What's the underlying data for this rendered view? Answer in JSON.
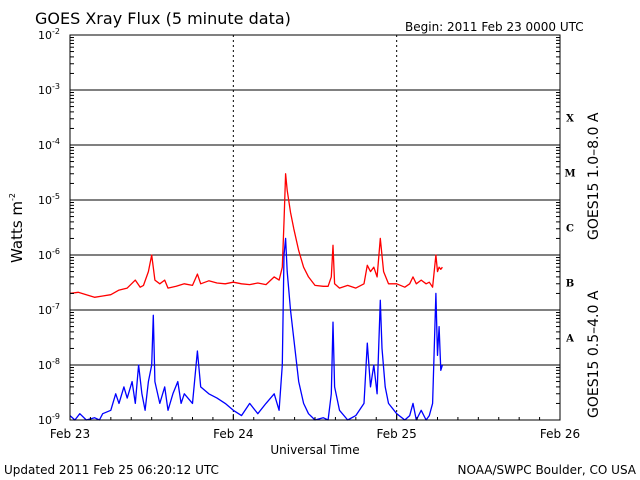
{
  "header": {
    "title": "GOES Xray Flux (5 minute data)",
    "begin": "Begin:  2011 Feb 23 0000 UTC"
  },
  "footer": {
    "updated": "Updated 2011 Feb 25 06:20:12 UTC",
    "source": "NOAA/SWPC Boulder, CO USA"
  },
  "colors": {
    "long_channel": "#ff0000",
    "short_channel": "#0000ff",
    "axes": "#000000"
  },
  "chart_data": {
    "type": "line",
    "title": "GOES Xray Flux (5 minute data)",
    "xlabel": "Universal Time",
    "ylabel_base": "Watts m",
    "ylabel_exp": "-2",
    "yscale": "log",
    "ylim": [
      1e-09,
      0.01
    ],
    "x_unit": "days since 2011 Feb 23 0000 UTC",
    "xlim": [
      0,
      3
    ],
    "x_ticks": [
      {
        "x": 0,
        "label": "Feb 23"
      },
      {
        "x": 1,
        "label": "Feb 24"
      },
      {
        "x": 2,
        "label": "Feb 25"
      },
      {
        "x": 3,
        "label": "Feb 26"
      }
    ],
    "y_ticks": [
      {
        "exp": -9,
        "base": "10",
        "sup": "-9"
      },
      {
        "exp": -8,
        "base": "10",
        "sup": "-8"
      },
      {
        "exp": -7,
        "base": "10",
        "sup": "-7"
      },
      {
        "exp": -6,
        "base": "10",
        "sup": "-6"
      },
      {
        "exp": -5,
        "base": "10",
        "sup": "-5"
      },
      {
        "exp": -4,
        "base": "10",
        "sup": "-4"
      },
      {
        "exp": -3,
        "base": "10",
        "sup": "-3"
      },
      {
        "exp": -2,
        "base": "10",
        "sup": "-2"
      }
    ],
    "grid": "horizontal gridlines at each decade, dotted vertical lines at each day",
    "flare_classes": [
      {
        "label": "A",
        "exp": -8
      },
      {
        "label": "B",
        "exp": -7
      },
      {
        "label": "C",
        "exp": -6
      },
      {
        "label": "M",
        "exp": -5
      },
      {
        "label": "X",
        "exp": -4
      }
    ],
    "series": [
      {
        "name": "GOES15 1.0–8.0 A",
        "color": "#ff0000",
        "points": [
          [
            0.0,
            2e-07
          ],
          [
            0.05,
            2.1e-07
          ],
          [
            0.1,
            1.9e-07
          ],
          [
            0.15,
            1.7e-07
          ],
          [
            0.2,
            1.8e-07
          ],
          [
            0.25,
            1.9e-07
          ],
          [
            0.3,
            2.3e-07
          ],
          [
            0.35,
            2.5e-07
          ],
          [
            0.4,
            3.5e-07
          ],
          [
            0.43,
            2.6e-07
          ],
          [
            0.45,
            2.8e-07
          ],
          [
            0.48,
            5e-07
          ],
          [
            0.5,
            1e-06
          ],
          [
            0.52,
            3.5e-07
          ],
          [
            0.55,
            3e-07
          ],
          [
            0.58,
            3.5e-07
          ],
          [
            0.6,
            2.5e-07
          ],
          [
            0.65,
            2.7e-07
          ],
          [
            0.7,
            3e-07
          ],
          [
            0.75,
            2.8e-07
          ],
          [
            0.78,
            4.5e-07
          ],
          [
            0.8,
            3e-07
          ],
          [
            0.85,
            3.4e-07
          ],
          [
            0.9,
            3.1e-07
          ],
          [
            0.95,
            3e-07
          ],
          [
            1.0,
            3.2e-07
          ],
          [
            1.05,
            3e-07
          ],
          [
            1.1,
            2.9e-07
          ],
          [
            1.15,
            3.1e-07
          ],
          [
            1.2,
            2.9e-07
          ],
          [
            1.25,
            4e-07
          ],
          [
            1.28,
            3.5e-07
          ],
          [
            1.3,
            6e-07
          ],
          [
            1.31,
            4e-06
          ],
          [
            1.32,
            3e-05
          ],
          [
            1.33,
            1.5e-05
          ],
          [
            1.35,
            6e-06
          ],
          [
            1.37,
            3e-06
          ],
          [
            1.4,
            1.2e-06
          ],
          [
            1.43,
            6e-07
          ],
          [
            1.46,
            4e-07
          ],
          [
            1.5,
            2.8e-07
          ],
          [
            1.55,
            2.7e-07
          ],
          [
            1.58,
            2.7e-07
          ],
          [
            1.6,
            4e-07
          ],
          [
            1.61,
            1.5e-06
          ],
          [
            1.62,
            3e-07
          ],
          [
            1.65,
            2.5e-07
          ],
          [
            1.7,
            2.8e-07
          ],
          [
            1.75,
            2.5e-07
          ],
          [
            1.8,
            3e-07
          ],
          [
            1.82,
            6.5e-07
          ],
          [
            1.84,
            5e-07
          ],
          [
            1.86,
            6e-07
          ],
          [
            1.88,
            4e-07
          ],
          [
            1.9,
            2e-06
          ],
          [
            1.92,
            5e-07
          ],
          [
            1.95,
            3e-07
          ],
          [
            2.0,
            3e-07
          ],
          [
            2.05,
            2.6e-07
          ],
          [
            2.08,
            3e-07
          ],
          [
            2.1,
            4e-07
          ],
          [
            2.12,
            3e-07
          ],
          [
            2.15,
            3.5e-07
          ],
          [
            2.18,
            3e-07
          ],
          [
            2.2,
            3.2e-07
          ],
          [
            2.22,
            2.6e-07
          ],
          [
            2.24,
            1e-06
          ],
          [
            2.25,
            5e-07
          ],
          [
            2.26,
            6e-07
          ],
          [
            2.27,
            5.5e-07
          ],
          [
            2.28,
            6e-07
          ]
        ]
      },
      {
        "name": "GOES15 0.5–4.0 A",
        "color": "#0000ff",
        "points": [
          [
            0.0,
            1.2e-09
          ],
          [
            0.03,
            1e-09
          ],
          [
            0.06,
            1.3e-09
          ],
          [
            0.1,
            1e-09
          ],
          [
            0.15,
            1.1e-09
          ],
          [
            0.18,
            1e-09
          ],
          [
            0.2,
            1.3e-09
          ],
          [
            0.25,
            1.5e-09
          ],
          [
            0.28,
            3e-09
          ],
          [
            0.3,
            2e-09
          ],
          [
            0.33,
            4e-09
          ],
          [
            0.35,
            2.5e-09
          ],
          [
            0.38,
            5e-09
          ],
          [
            0.4,
            2e-09
          ],
          [
            0.42,
            1e-08
          ],
          [
            0.44,
            3e-09
          ],
          [
            0.46,
            1.5e-09
          ],
          [
            0.48,
            5e-09
          ],
          [
            0.5,
            1e-08
          ],
          [
            0.51,
            8e-08
          ],
          [
            0.52,
            5e-09
          ],
          [
            0.55,
            2e-09
          ],
          [
            0.58,
            4e-09
          ],
          [
            0.6,
            1.5e-09
          ],
          [
            0.63,
            3e-09
          ],
          [
            0.66,
            5e-09
          ],
          [
            0.68,
            2e-09
          ],
          [
            0.7,
            3e-09
          ],
          [
            0.75,
            2e-09
          ],
          [
            0.78,
            1.8e-08
          ],
          [
            0.8,
            4e-09
          ],
          [
            0.85,
            3e-09
          ],
          [
            0.9,
            2.5e-09
          ],
          [
            0.95,
            2e-09
          ],
          [
            1.0,
            1.5e-09
          ],
          [
            1.05,
            1.2e-09
          ],
          [
            1.1,
            2e-09
          ],
          [
            1.15,
            1.3e-09
          ],
          [
            1.2,
            2e-09
          ],
          [
            1.25,
            3e-09
          ],
          [
            1.28,
            1.5e-09
          ],
          [
            1.3,
            1e-08
          ],
          [
            1.31,
            1e-06
          ],
          [
            1.32,
            2e-06
          ],
          [
            1.33,
            5e-07
          ],
          [
            1.35,
            1e-07
          ],
          [
            1.37,
            3e-08
          ],
          [
            1.4,
            5e-09
          ],
          [
            1.43,
            2e-09
          ],
          [
            1.46,
            1.3e-09
          ],
          [
            1.5,
            1e-09
          ],
          [
            1.55,
            1.1e-09
          ],
          [
            1.58,
            1e-09
          ],
          [
            1.6,
            3e-09
          ],
          [
            1.61,
            6e-08
          ],
          [
            1.62,
            4e-09
          ],
          [
            1.65,
            1.5e-09
          ],
          [
            1.7,
            1e-09
          ],
          [
            1.75,
            1.2e-09
          ],
          [
            1.8,
            2e-09
          ],
          [
            1.82,
            2.5e-08
          ],
          [
            1.84,
            4e-09
          ],
          [
            1.86,
            1e-08
          ],
          [
            1.88,
            3e-09
          ],
          [
            1.9,
            1.5e-07
          ],
          [
            1.91,
            2e-08
          ],
          [
            1.93,
            4e-09
          ],
          [
            1.95,
            2e-09
          ],
          [
            2.0,
            1.3e-09
          ],
          [
            2.05,
            1e-09
          ],
          [
            2.08,
            1.2e-09
          ],
          [
            2.1,
            2e-09
          ],
          [
            2.12,
            1e-09
          ],
          [
            2.15,
            1.5e-09
          ],
          [
            2.18,
            1e-09
          ],
          [
            2.2,
            1.2e-09
          ],
          [
            2.22,
            2e-09
          ],
          [
            2.24,
            2e-07
          ],
          [
            2.25,
            1.5e-08
          ],
          [
            2.26,
            5e-08
          ],
          [
            2.27,
            8e-09
          ],
          [
            2.28,
            1e-08
          ]
        ]
      }
    ]
  }
}
